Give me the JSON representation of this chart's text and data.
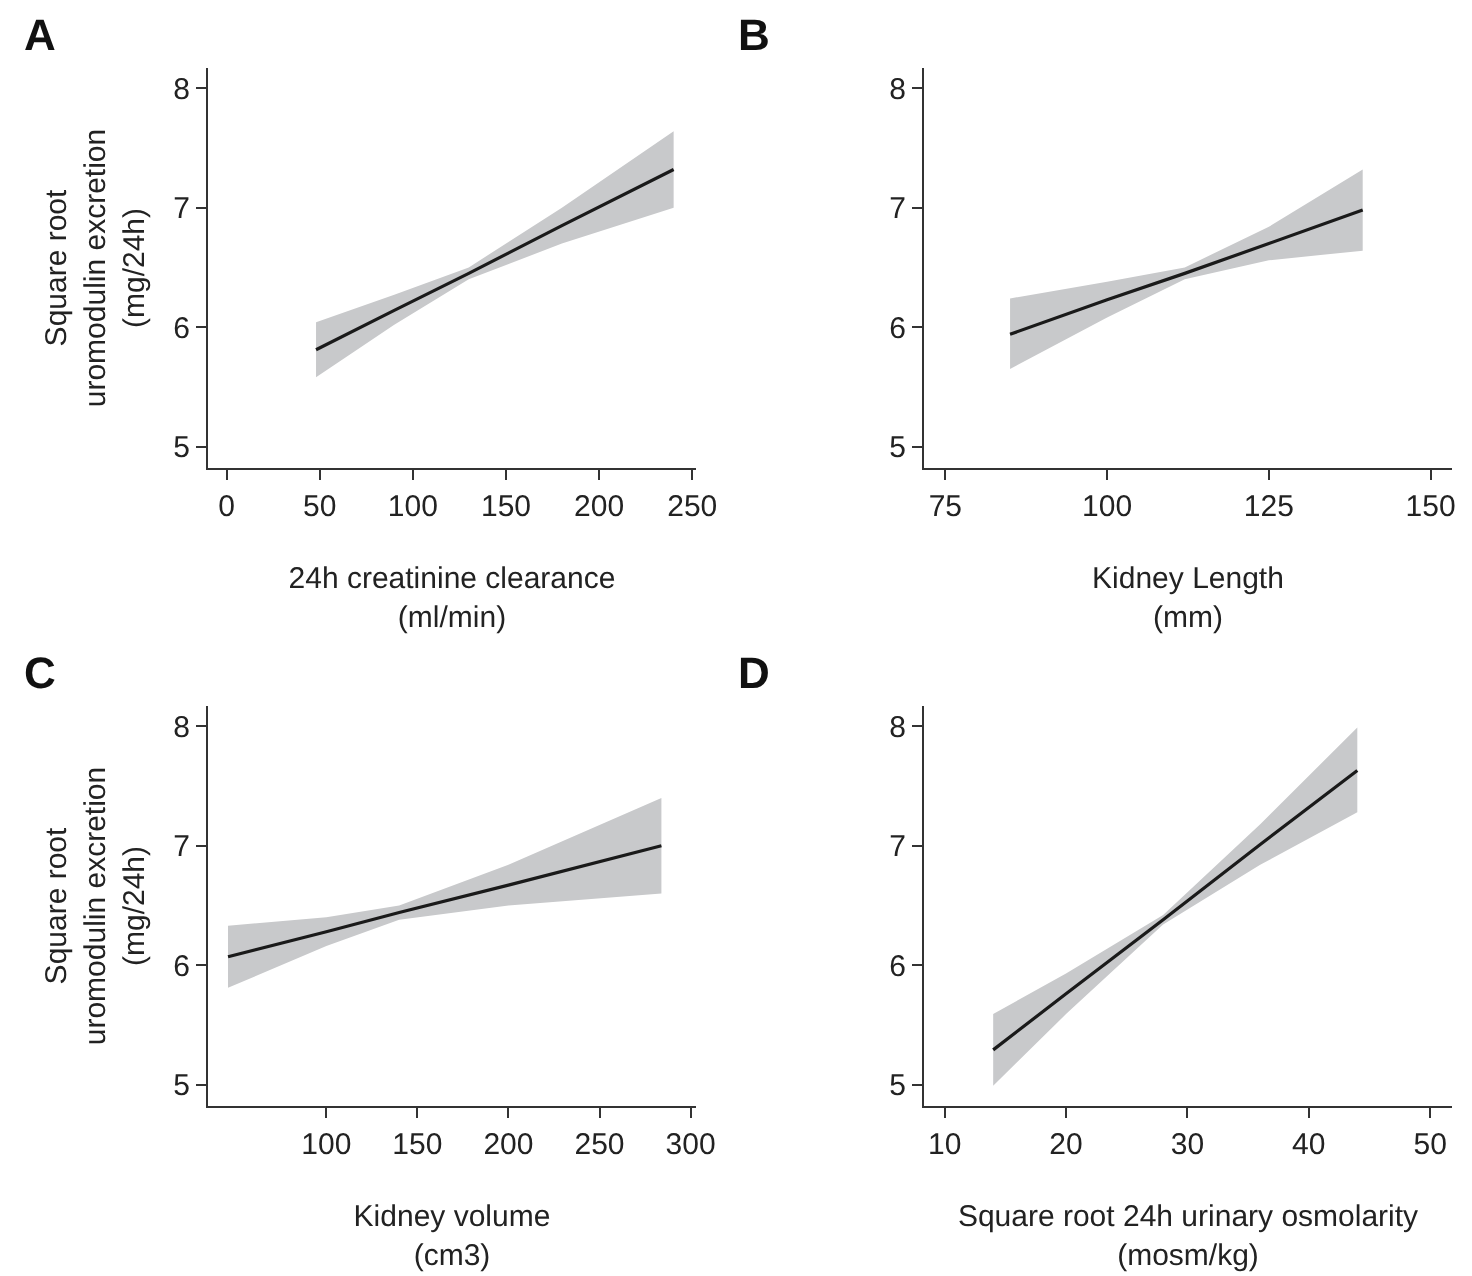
{
  "chart_data": [
    {
      "type": "line",
      "title": "A",
      "xlabel": "24h creatinine clearance\n(ml/min)",
      "ylabel": "Square root\nuromodulin excretion\n(mg/24h)",
      "xlim": [
        -10,
        252
      ],
      "xticks": [
        0,
        50,
        100,
        150,
        200,
        250
      ],
      "ylim": [
        4.82,
        8.17
      ],
      "yticks": [
        5,
        6,
        7,
        8
      ],
      "series": [
        {
          "color": "#1a1a1a",
          "x": [
            48,
            90,
            130,
            180,
            240
          ],
          "values": [
            5.81,
            6.14,
            6.45,
            6.85,
            7.32
          ],
          "lower": [
            5.58,
            6.02,
            6.4,
            6.7,
            7.0
          ],
          "upper": [
            6.04,
            6.27,
            6.5,
            7.0,
            7.64
          ]
        }
      ]
    },
    {
      "type": "line",
      "title": "B",
      "xlabel": "Kidney Length\n(mm)",
      "xlim": [
        71.7,
        153.3
      ],
      "xticks": [
        75,
        100,
        125,
        150
      ],
      "ylim": [
        4.82,
        8.17
      ],
      "yticks": [
        5,
        6,
        7,
        8
      ],
      "series": [
        {
          "color": "#1a1a1a",
          "x": [
            85,
            100,
            112,
            125,
            139.5
          ],
          "values": [
            5.94,
            6.23,
            6.45,
            6.7,
            6.98
          ],
          "lower": [
            5.65,
            6.08,
            6.4,
            6.56,
            6.64
          ],
          "upper": [
            6.24,
            6.38,
            6.5,
            6.84,
            7.32
          ]
        }
      ]
    },
    {
      "type": "line",
      "title": "C",
      "xlabel": "Kidney volume\n(cm3)",
      "ylabel": "Square root\nuromodulin excretion\n(mg/24h)",
      "xlim": [
        35,
        303
      ],
      "xticks": [
        100,
        150,
        200,
        250,
        300
      ],
      "ylim": [
        4.82,
        8.17
      ],
      "yticks": [
        5,
        6,
        7,
        8
      ],
      "series": [
        {
          "color": "#1a1a1a",
          "x": [
            46,
            100,
            140,
            200,
            284
          ],
          "values": [
            6.07,
            6.28,
            6.44,
            6.67,
            7.0
          ],
          "lower": [
            5.81,
            6.16,
            6.38,
            6.5,
            6.6
          ],
          "upper": [
            6.33,
            6.4,
            6.5,
            6.84,
            7.4
          ]
        }
      ]
    },
    {
      "type": "line",
      "title": "D",
      "xlabel": "Square root 24h urinary osmolarity\n(mosm/kg)",
      "xlim": [
        8.3,
        51.8
      ],
      "xticks": [
        10,
        20,
        30,
        40,
        50
      ],
      "ylim": [
        4.82,
        8.17
      ],
      "yticks": [
        5,
        6,
        7,
        8
      ],
      "series": [
        {
          "color": "#1a1a1a",
          "x": [
            14,
            20,
            28,
            36,
            44
          ],
          "values": [
            5.29,
            5.76,
            6.38,
            7.01,
            7.63
          ],
          "lower": [
            4.99,
            5.59,
            6.34,
            6.84,
            7.28
          ],
          "upper": [
            5.59,
            5.93,
            6.42,
            7.18,
            7.99
          ]
        }
      ]
    }
  ]
}
